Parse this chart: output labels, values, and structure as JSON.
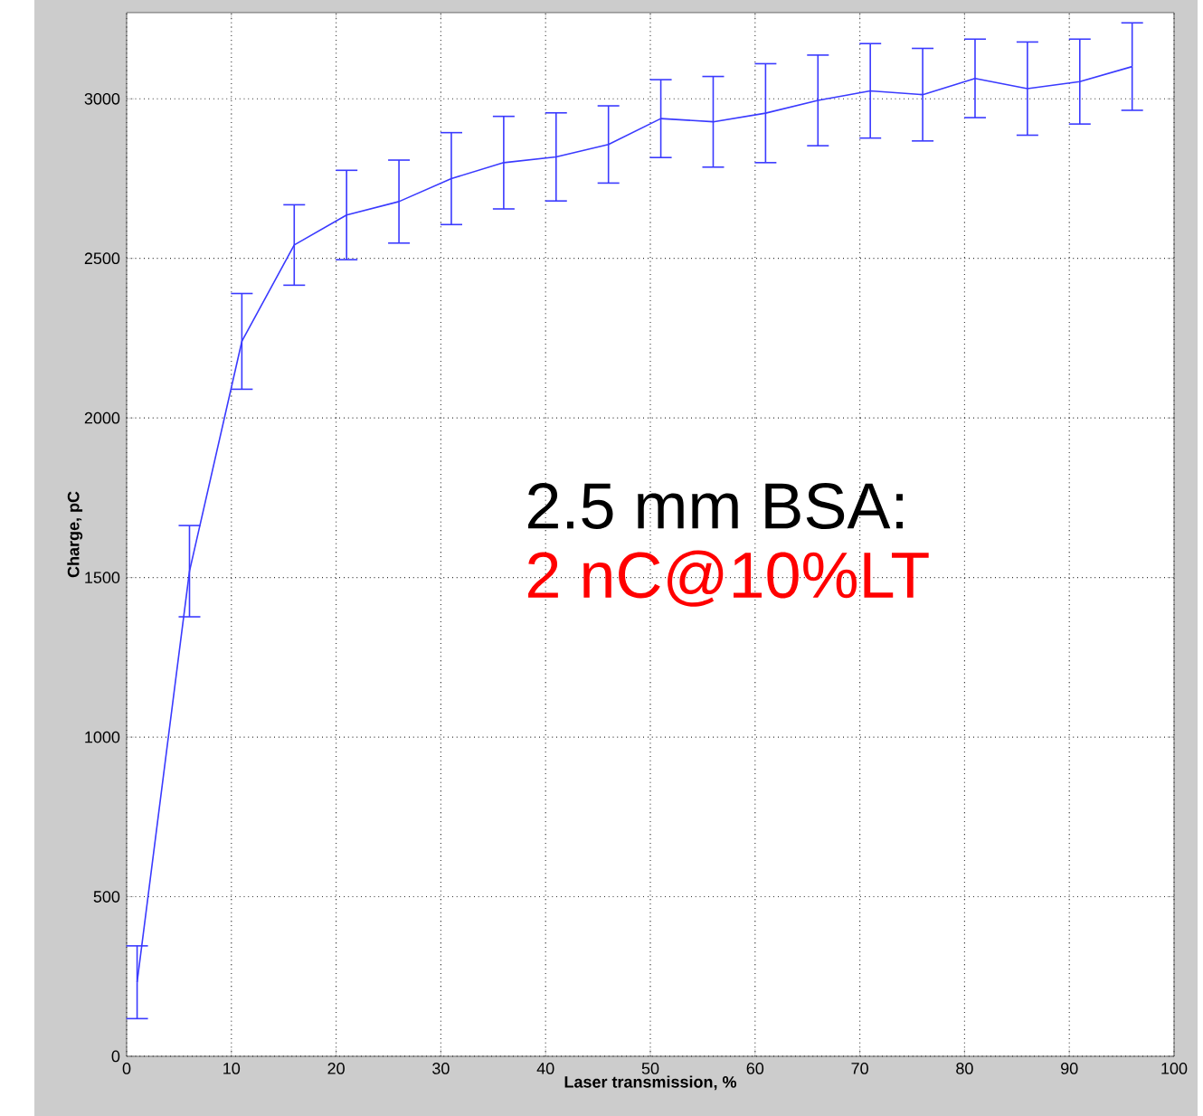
{
  "chart_data": {
    "type": "line",
    "xlabel": "Laser transmission, %",
    "ylabel": "Charge, pC",
    "annotations": [
      "2.5 mm BSA:",
      "2 nC@10%LT"
    ],
    "x": [
      1,
      6,
      11,
      16,
      21,
      26,
      31,
      36,
      41,
      46,
      51,
      56,
      61,
      66,
      71,
      76,
      81,
      86,
      91,
      96
    ],
    "series": [
      {
        "color": "#3a3aff",
        "values": [
          232,
          1520,
          2240,
          2542,
          2636,
          2678,
          2750,
          2800,
          2818,
          2857,
          2938,
          2928,
          2955,
          2995,
          3025,
          3013,
          3064,
          3032,
          3054,
          3101
        ],
        "errors": [
          114,
          143,
          150,
          126,
          140,
          130,
          144,
          145,
          138,
          121,
          122,
          142,
          155,
          142,
          148,
          145,
          123,
          146,
          133,
          137
        ]
      }
    ],
    "xlim": [
      0,
      100
    ],
    "ylim": [
      0,
      3270
    ],
    "xticks": [
      0,
      10,
      20,
      30,
      40,
      50,
      60,
      70,
      80,
      90,
      100
    ],
    "yticks": [
      0,
      500,
      1000,
      1500,
      2000,
      2500,
      3000
    ],
    "grid": true,
    "marker": "none",
    "line_style": "solid"
  }
}
